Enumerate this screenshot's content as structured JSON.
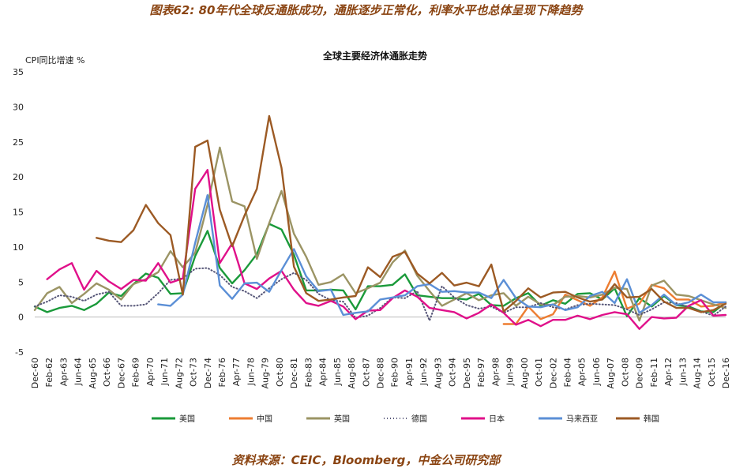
{
  "figure_title": "图表62: 80年代全球反通胀成功，通胀逐步正常化，利率水平也总体呈现下降趋势",
  "source_note": "资料来源：CEIC，Bloomberg，中金公司研究部",
  "chart_data": {
    "type": "line",
    "title": "全球主要经济体通胀走势",
    "ylabel": "CPI同比增速 %",
    "ylim": [
      -5,
      35
    ],
    "yticks": [
      -5,
      0,
      5,
      10,
      15,
      20,
      25,
      30,
      35
    ],
    "xlim": [
      1960.917,
      2016.917
    ],
    "x_tick_labels": [
      "Dec-60",
      "Feb-62",
      "Apr-63",
      "Jun-64",
      "Aug-65",
      "Oct-66",
      "Dec-67",
      "Feb-69",
      "Apr-70",
      "Jun-71",
      "Aug-72",
      "Oct-73",
      "Dec-74",
      "Feb-76",
      "Apr-77",
      "Jun-78",
      "Aug-79",
      "Oct-80",
      "Dec-81",
      "Feb-83",
      "Apr-84",
      "Jun-85",
      "Aug-86",
      "Oct-87",
      "Dec-88",
      "Feb-90",
      "Apr-91",
      "Jun-92",
      "Aug-93",
      "Oct-94",
      "Dec-95",
      "Feb-97",
      "Apr-98",
      "Jun-99",
      "Aug-00",
      "Oct-01",
      "Dec-02",
      "Feb-04",
      "Apr-05",
      "Jun-06",
      "Aug-07",
      "Oct-08",
      "Dec-09",
      "Feb-11",
      "Apr-12",
      "Jun-13",
      "Aug-14",
      "Oct-15",
      "Dec-16"
    ],
    "grid": false,
    "legend_position": "bottom",
    "series": [
      {
        "name": "美国",
        "color": "#1a9a3a",
        "dash": "solid",
        "x": [
          1960.92,
          1961.92,
          1962.92,
          1963.92,
          1964.92,
          1965.92,
          1966.92,
          1967.92,
          1968.92,
          1969.92,
          1970.92,
          1971.92,
          1972.92,
          1973.92,
          1974.92,
          1975.92,
          1976.92,
          1977.92,
          1978.92,
          1979.92,
          1980.92,
          1981.92,
          1982.92,
          1983.92,
          1984.92,
          1985.92,
          1986.92,
          1987.92,
          1988.92,
          1989.92,
          1990.92,
          1991.92,
          1992.92,
          1993.92,
          1994.92,
          1995.92,
          1996.92,
          1997.92,
          1998.92,
          1999.92,
          2000.92,
          2001.92,
          2002.92,
          2003.92,
          2004.92,
          2005.92,
          2006.92,
          2007.92,
          2008.92,
          2009.92,
          2010.92,
          2011.92,
          2012.92,
          2013.92,
          2014.92,
          2015.92,
          2016.92
        ],
        "y": [
          1.5,
          0.7,
          1.3,
          1.6,
          1.0,
          1.9,
          3.5,
          3.0,
          4.7,
          6.2,
          5.6,
          3.3,
          3.4,
          8.7,
          12.3,
          7.0,
          4.8,
          6.7,
          9.0,
          13.3,
          12.5,
          8.9,
          3.8,
          3.8,
          3.9,
          3.8,
          1.1,
          4.4,
          4.4,
          4.6,
          6.1,
          3.1,
          2.9,
          2.7,
          2.7,
          2.5,
          3.3,
          1.7,
          1.6,
          2.7,
          3.4,
          1.6,
          2.4,
          1.9,
          3.3,
          3.4,
          2.5,
          4.1,
          0.1,
          2.7,
          1.5,
          3.0,
          1.7,
          1.5,
          0.8,
          0.7,
          2.1
        ]
      },
      {
        "name": "中国",
        "color": "#ed7d31",
        "dash": "solid",
        "x": [
          1998.92,
          1999.92,
          2000.92,
          2001.92,
          2002.92,
          2003.92,
          2004.92,
          2005.92,
          2006.92,
          2007.92,
          2008.92,
          2009.92,
          2010.92,
          2011.92,
          2012.92,
          2013.92,
          2014.92,
          2015.92,
          2016.92
        ],
        "y": [
          -1.0,
          -1.0,
          1.5,
          -0.3,
          0.4,
          3.2,
          2.4,
          1.6,
          2.8,
          6.5,
          1.2,
          1.9,
          4.6,
          4.1,
          2.5,
          2.5,
          1.5,
          1.6,
          2.1
        ]
      },
      {
        "name": "英国",
        "color": "#9b9464",
        "dash": "solid",
        "x": [
          1960.92,
          1961.92,
          1962.92,
          1963.92,
          1964.92,
          1965.92,
          1966.92,
          1967.92,
          1968.92,
          1969.92,
          1970.92,
          1971.92,
          1972.92,
          1973.92,
          1974.92,
          1975.92,
          1976.92,
          1977.92,
          1978.92,
          1979.92,
          1980.92,
          1981.92,
          1982.92,
          1983.92,
          1984.92,
          1985.92,
          1986.92,
          1987.92,
          1988.92,
          1989.92,
          1990.92,
          1991.92,
          1992.92,
          1993.92,
          1994.92,
          1995.92,
          1996.92,
          1997.92,
          1998.92,
          1999.92,
          2000.92,
          2001.92,
          2002.92,
          2003.92,
          2004.92,
          2005.92,
          2006.92,
          2007.92,
          2008.92,
          2009.92,
          2010.92,
          2011.92,
          2012.92,
          2013.92,
          2014.92,
          2015.92,
          2016.92
        ],
        "y": [
          1.0,
          3.4,
          4.3,
          2.0,
          3.3,
          4.8,
          3.9,
          2.5,
          4.7,
          5.4,
          6.4,
          9.4,
          7.1,
          9.2,
          16.0,
          24.2,
          16.5,
          15.8,
          8.3,
          13.4,
          18.0,
          11.9,
          8.6,
          4.6,
          5.0,
          6.1,
          3.4,
          4.1,
          4.9,
          7.8,
          9.5,
          5.9,
          3.7,
          1.6,
          2.5,
          3.4,
          2.4,
          3.1,
          3.4,
          1.6,
          2.9,
          1.8,
          1.7,
          2.9,
          3.0,
          2.8,
          3.2,
          4.2,
          4.0,
          -0.5,
          4.5,
          5.2,
          3.2,
          3.0,
          2.4,
          1.8,
          1.3
        ]
      },
      {
        "name": "德国",
        "color": "#555577",
        "dash": "dotted",
        "x": [
          1960.92,
          1961.92,
          1962.92,
          1963.92,
          1964.92,
          1965.92,
          1966.92,
          1967.92,
          1968.92,
          1969.92,
          1970.92,
          1971.92,
          1972.92,
          1973.92,
          1974.92,
          1975.92,
          1976.92,
          1977.92,
          1978.92,
          1979.92,
          1980.92,
          1981.92,
          1982.92,
          1983.92,
          1984.92,
          1985.92,
          1986.92,
          1987.92,
          1988.92,
          1989.92,
          1990.92,
          1991.92,
          1992.92,
          1993.92,
          1994.92,
          1995.92,
          1996.92,
          1997.92,
          1998.92,
          1999.92,
          2000.92,
          2001.92,
          2002.92,
          2003.92,
          2004.92,
          2005.92,
          2006.92,
          2007.92,
          2008.92,
          2009.92,
          2010.92,
          2011.92,
          2012.92,
          2013.92,
          2014.92,
          2015.92,
          2016.92
        ],
        "y": [
          1.5,
          2.2,
          3.1,
          2.9,
          2.3,
          3.2,
          3.6,
          1.6,
          1.6,
          1.8,
          3.4,
          5.3,
          5.5,
          6.9,
          7.0,
          6.0,
          4.3,
          3.7,
          2.7,
          4.1,
          5.4,
          6.3,
          5.3,
          3.3,
          2.4,
          2.2,
          -0.1,
          0.2,
          1.3,
          2.8,
          2.7,
          3.7,
          -0.5,
          4.4,
          2.8,
          1.7,
          1.2,
          1.5,
          0.6,
          1.4,
          1.4,
          2.0,
          1.4,
          1.1,
          1.7,
          1.9,
          1.8,
          1.7,
          1.1,
          0.3,
          1.1,
          2.1,
          2.0,
          1.4,
          0.8,
          0.2,
          1.5
        ]
      },
      {
        "name": "日本",
        "color": "#e0108a",
        "dash": "solid",
        "x": [
          1961.92,
          1962.92,
          1963.92,
          1964.92,
          1965.92,
          1966.92,
          1967.92,
          1968.92,
          1969.92,
          1970.92,
          1971.92,
          1972.92,
          1973.92,
          1974.92,
          1975.92,
          1976.92,
          1977.92,
          1978.92,
          1979.92,
          1980.92,
          1981.92,
          1982.92,
          1983.92,
          1984.92,
          1985.92,
          1986.92,
          1987.92,
          1988.92,
          1989.92,
          1990.92,
          1991.92,
          1992.92,
          1993.92,
          1994.92,
          1995.92,
          1996.92,
          1997.92,
          1998.92,
          1999.92,
          2000.92,
          2001.92,
          2002.92,
          2003.92,
          2004.92,
          2005.92,
          2006.92,
          2007.92,
          2008.92,
          2009.92,
          2010.92,
          2011.92,
          2012.92,
          2013.92,
          2014.92,
          2015.92,
          2016.92
        ],
        "y": [
          5.4,
          6.8,
          7.7,
          3.9,
          6.6,
          5.1,
          4.0,
          5.3,
          5.2,
          7.7,
          4.9,
          5.5,
          18.3,
          21.0,
          7.7,
          10.5,
          4.8,
          4.0,
          5.5,
          6.6,
          3.9,
          2.0,
          1.6,
          2.3,
          1.5,
          -0.3,
          0.9,
          1.0,
          2.7,
          3.8,
          2.9,
          1.3,
          1.0,
          0.7,
          -0.2,
          0.6,
          1.8,
          0.6,
          -1.1,
          -0.4,
          -1.3,
          -0.4,
          -0.4,
          0.2,
          -0.3,
          0.3,
          0.7,
          0.4,
          -1.7,
          0.0,
          -0.2,
          -0.1,
          1.6,
          2.4,
          0.2,
          0.3
        ]
      },
      {
        "name": "马来西亚",
        "color": "#5b8fd6",
        "dash": "solid",
        "x": [
          1970.92,
          1971.92,
          1972.92,
          1973.92,
          1974.92,
          1975.92,
          1976.92,
          1977.92,
          1978.92,
          1979.92,
          1980.92,
          1981.92,
          1982.92,
          1983.92,
          1984.92,
          1985.92,
          1986.92,
          1987.92,
          1988.92,
          1989.92,
          1990.92,
          1991.92,
          1992.92,
          1993.92,
          1994.92,
          1995.92,
          1996.92,
          1997.92,
          1998.92,
          1999.92,
          2000.92,
          2001.92,
          2002.92,
          2003.92,
          2004.92,
          2005.92,
          2006.92,
          2007.92,
          2008.92,
          2009.92,
          2010.92,
          2011.92,
          2012.92,
          2013.92,
          2014.92,
          2015.92,
          2016.92
        ],
        "y": [
          1.8,
          1.6,
          3.2,
          10.6,
          17.4,
          4.5,
          2.6,
          4.8,
          4.9,
          3.6,
          6.7,
          9.7,
          5.8,
          3.7,
          3.9,
          0.3,
          0.6,
          0.8,
          2.5,
          2.8,
          3.1,
          4.4,
          4.7,
          3.6,
          3.7,
          3.5,
          3.5,
          2.7,
          5.3,
          2.7,
          1.5,
          1.4,
          1.8,
          1.0,
          1.4,
          3.0,
          3.6,
          2.0,
          5.4,
          0.6,
          1.7,
          3.2,
          1.7,
          2.1,
          3.2,
          2.1,
          2.1
        ]
      },
      {
        "name": "韩国",
        "color": "#9c5a24",
        "dash": "solid",
        "x": [
          1965.92,
          1966.92,
          1967.92,
          1968.92,
          1969.92,
          1970.92,
          1971.92,
          1972.92,
          1973.92,
          1974.92,
          1975.92,
          1976.92,
          1977.92,
          1978.92,
          1979.92,
          1980.92,
          1981.92,
          1982.92,
          1983.92,
          1984.92,
          1985.92,
          1986.92,
          1987.92,
          1988.92,
          1989.92,
          1990.92,
          1991.92,
          1992.92,
          1993.92,
          1994.92,
          1995.92,
          1996.92,
          1997.92,
          1998.92,
          1999.92,
          2000.92,
          2001.92,
          2002.92,
          2003.92,
          2004.92,
          2005.92,
          2006.92,
          2007.92,
          2008.92,
          2009.92,
          2010.92,
          2011.92,
          2012.92,
          2013.92,
          2014.92,
          2015.92,
          2016.92
        ],
        "y": [
          11.3,
          10.9,
          10.7,
          12.4,
          16.0,
          13.4,
          11.7,
          3.2,
          24.3,
          25.2,
          15.3,
          10.1,
          14.5,
          18.3,
          28.7,
          21.3,
          7.2,
          3.4,
          2.3,
          2.5,
          2.8,
          3.0,
          7.1,
          5.7,
          8.6,
          9.3,
          6.2,
          4.8,
          6.3,
          4.5,
          4.9,
          4.4,
          7.5,
          0.8,
          2.3,
          4.1,
          2.8,
          3.5,
          3.6,
          2.8,
          2.2,
          2.5,
          4.7,
          2.8,
          2.9,
          4.0,
          2.2,
          1.3,
          1.3,
          0.7,
          1.0,
          1.9
        ]
      }
    ]
  }
}
